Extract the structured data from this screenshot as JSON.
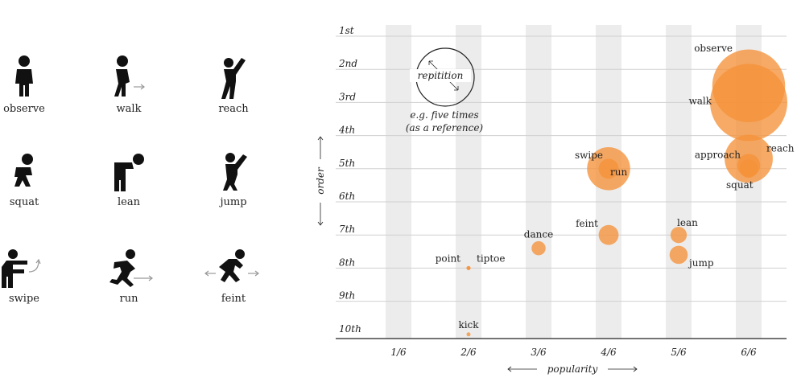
{
  "legend": {
    "actions": [
      {
        "label": "observe",
        "icon": "observe-icon"
      },
      {
        "label": "walk",
        "icon": "walk-icon"
      },
      {
        "label": "reach",
        "icon": "reach-icon"
      },
      {
        "label": "squat",
        "icon": "squat-icon"
      },
      {
        "label": "lean",
        "icon": "lean-icon"
      },
      {
        "label": "jump",
        "icon": "jump-icon"
      },
      {
        "label": "swipe",
        "icon": "swipe-icon"
      },
      {
        "label": "run",
        "icon": "run-icon"
      },
      {
        "label": "feint",
        "icon": "feint-icon"
      }
    ]
  },
  "chart_data": {
    "type": "scatter",
    "title": "",
    "xlabel": "popularity",
    "ylabel": "order",
    "x_categories": [
      "1/6",
      "2/6",
      "3/6",
      "4/6",
      "5/6",
      "6/6"
    ],
    "y_categories": [
      "1st",
      "2nd",
      "3rd",
      "4th",
      "5th",
      "6th",
      "7th",
      "8th",
      "9th",
      "10th"
    ],
    "size_legend": {
      "label": "repitition",
      "note_line1": "e.g. five times",
      "note_line2": "(as a reference)",
      "value": 5
    },
    "points": [
      {
        "label": "observe",
        "x": 6,
        "y": 2.5,
        "size": 8
      },
      {
        "label": "walk",
        "x": 6,
        "y": 3.0,
        "size": 9
      },
      {
        "label": "reach",
        "x": 6,
        "y": 4.7,
        "size": 3.5
      },
      {
        "label": "approach",
        "x": 6,
        "y": 4.9,
        "size": 0.8
      },
      {
        "label": "squat",
        "x": 6,
        "y": 5.0,
        "size": 0.5
      },
      {
        "label": "swipe",
        "x": 4,
        "y": 5.0,
        "size": 2.8
      },
      {
        "label": "run",
        "x": 4,
        "y": 5.0,
        "size": 0.6
      },
      {
        "label": "feint",
        "x": 4,
        "y": 7.0,
        "size": 0.6
      },
      {
        "label": "lean",
        "x": 5,
        "y": 7.0,
        "size": 0.4
      },
      {
        "label": "jump",
        "x": 5,
        "y": 7.6,
        "size": 0.5
      },
      {
        "label": "dance",
        "x": 3,
        "y": 7.4,
        "size": 0.3
      },
      {
        "label": "point",
        "x": 2,
        "y": 8.0,
        "size": 0.02
      },
      {
        "label": "tiptoe",
        "x": 2,
        "y": 8.0,
        "size": 0.02
      },
      {
        "label": "kick",
        "x": 2,
        "y": 10.0,
        "size": 0.02
      }
    ],
    "color": "#f5923a",
    "band_color": "#ececec",
    "grid": true
  }
}
